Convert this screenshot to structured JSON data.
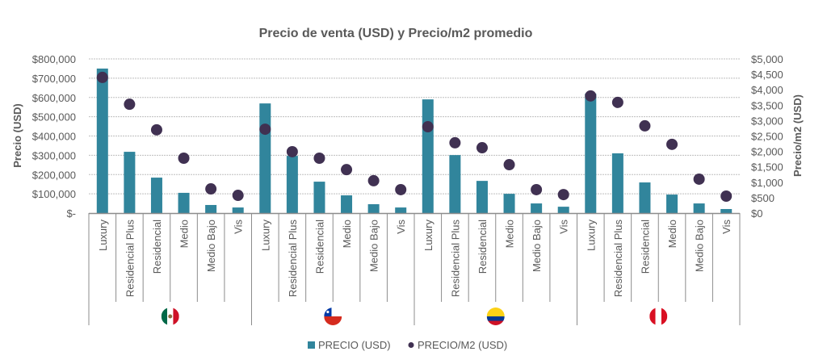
{
  "chart_data": {
    "type": "bar",
    "title": "Precio de venta (USD) y Precio/m2 promedio",
    "ylabel": "Precio (USD)",
    "ylabel_right": "Precio/m2 (USD)",
    "ylim": [
      0,
      800000
    ],
    "ylim_right": [
      0,
      5000
    ],
    "yticks": [
      "$-",
      "$100,000",
      "$200,000",
      "$300,000",
      "$400,000",
      "$500,000",
      "$600,000",
      "$700,000",
      "$800,000"
    ],
    "yticks_right": [
      "$0",
      "$500",
      "$1,000",
      "$1,500",
      "$2,000",
      "$2,500",
      "$3,000",
      "$3,500",
      "$4,000",
      "$4,500",
      "$5,000"
    ],
    "grid": true,
    "legend_position": "bottom",
    "categories": [
      "Luxury",
      "Residencial Plus",
      "Residencial",
      "Medio",
      "Medio Bajo",
      "Vis"
    ],
    "groups": [
      {
        "name": "Mexico",
        "flag": "mexico-flag"
      },
      {
        "name": "Chile",
        "flag": "chile-flag"
      },
      {
        "name": "Colombia",
        "flag": "colombia-flag"
      },
      {
        "name": "Peru",
        "flag": "peru-flag"
      }
    ],
    "series": [
      {
        "name": "PRECIO (USD)",
        "kind": "bar",
        "axis": "left",
        "color": "#31859C",
        "values": [
          [
            750000,
            318000,
            184000,
            105000,
            42000,
            29000
          ],
          [
            569000,
            297000,
            163000,
            92000,
            46000,
            29000
          ],
          [
            590000,
            301000,
            167000,
            100000,
            50000,
            33000
          ],
          [
            620000,
            310000,
            159000,
            96000,
            50000,
            21000
          ]
        ]
      },
      {
        "name": "PRECIO/M2 (USD)",
        "kind": "scatter",
        "axis": "right",
        "color": "#403152",
        "values": [
          [
            4400,
            3530,
            2700,
            1780,
            785,
            575
          ],
          [
            2720,
            1990,
            1780,
            1410,
            1050,
            760
          ],
          [
            2800,
            2280,
            2120,
            1570,
            760,
            600
          ],
          [
            3800,
            3590,
            2830,
            2230,
            1100,
            550
          ]
        ]
      }
    ]
  },
  "colors": {
    "text": "#595959",
    "grid": "#BFBFBF",
    "axis": "#8C8C8C"
  }
}
